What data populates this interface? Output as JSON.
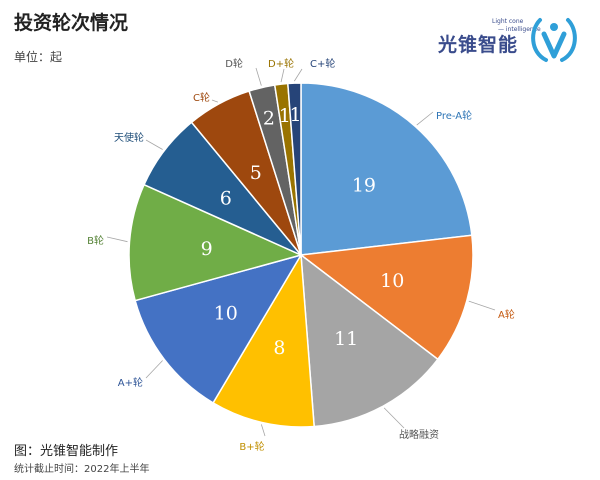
{
  "title": "投资轮次情况",
  "unit_label": "单位：起",
  "caption": "图：光锥智能制作",
  "footnote": "统计截止时间：2022年上半年",
  "logo": {
    "cn": "光锥智能",
    "en_line1": "Light cone",
    "en_line2": "— intelligence",
    "icon": "light-cone-logo-icon"
  },
  "chart_data": {
    "type": "pie",
    "title": "投资轮次情况",
    "unit": "起",
    "start_angle_deg": 0,
    "direction": "clockwise",
    "slices": [
      {
        "label": "Pre-A轮",
        "value": 19,
        "color": "#5B9BD5",
        "label_color": "#2E75B6"
      },
      {
        "label": "A轮",
        "value": 10,
        "color": "#ED7D31",
        "label_color": "#C55A11"
      },
      {
        "label": "战略融资",
        "value": 11,
        "color": "#A5A5A5",
        "label_color": "#555555"
      },
      {
        "label": "B+轮",
        "value": 8,
        "color": "#FFC000",
        "label_color": "#C08F00"
      },
      {
        "label": "A+轮",
        "value": 10,
        "color": "#4472C4",
        "label_color": "#2F5597"
      },
      {
        "label": "B轮",
        "value": 9,
        "color": "#70AD47",
        "label_color": "#548235"
      },
      {
        "label": "天使轮",
        "value": 6,
        "color": "#255E91",
        "label_color": "#1F4E79"
      },
      {
        "label": "C轮",
        "value": 5,
        "color": "#9E480E",
        "label_color": "#9E480E"
      },
      {
        "label": "D轮",
        "value": 2,
        "color": "#636363",
        "label_color": "#555555"
      },
      {
        "label": "D+轮",
        "value": 1,
        "color": "#997300",
        "label_color": "#997300"
      },
      {
        "label": "C+轮",
        "value": 1,
        "color": "#264478",
        "label_color": "#264478"
      }
    ]
  }
}
